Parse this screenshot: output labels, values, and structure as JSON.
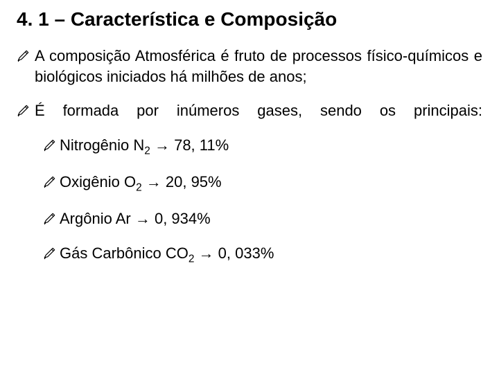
{
  "title": "4. 1 – Característica e Composição",
  "bullets": [
    {
      "text": "A composição Atmosférica é fruto de processos físico-químicos e biológicos iniciados há milhões de anos;",
      "justify": true
    },
    {
      "text": "É formada por inúmeros gases, sendo os principais:",
      "spread": true
    }
  ],
  "gases": [
    {
      "name": "Nitrogênio",
      "formula_base": "N",
      "formula_sub": "2",
      "percent": "78, 11%"
    },
    {
      "name": "Oxigênio",
      "formula_base": "O",
      "formula_sub": "2",
      "percent": "20, 95%"
    },
    {
      "name": "Argônio",
      "formula_base": "Ar",
      "formula_sub": "",
      "percent": "0, 934%"
    },
    {
      "name": "Gás Carbônico",
      "formula_base": "CO",
      "formula_sub": "2",
      "percent": "0, 033%"
    }
  ],
  "icons": {
    "pencil_stroke": "#000000",
    "arrow_glyph": "→"
  },
  "style": {
    "background": "#ffffff",
    "text_color": "#000000",
    "title_fontsize": 28,
    "body_fontsize": 22,
    "font_family": "Arial"
  }
}
